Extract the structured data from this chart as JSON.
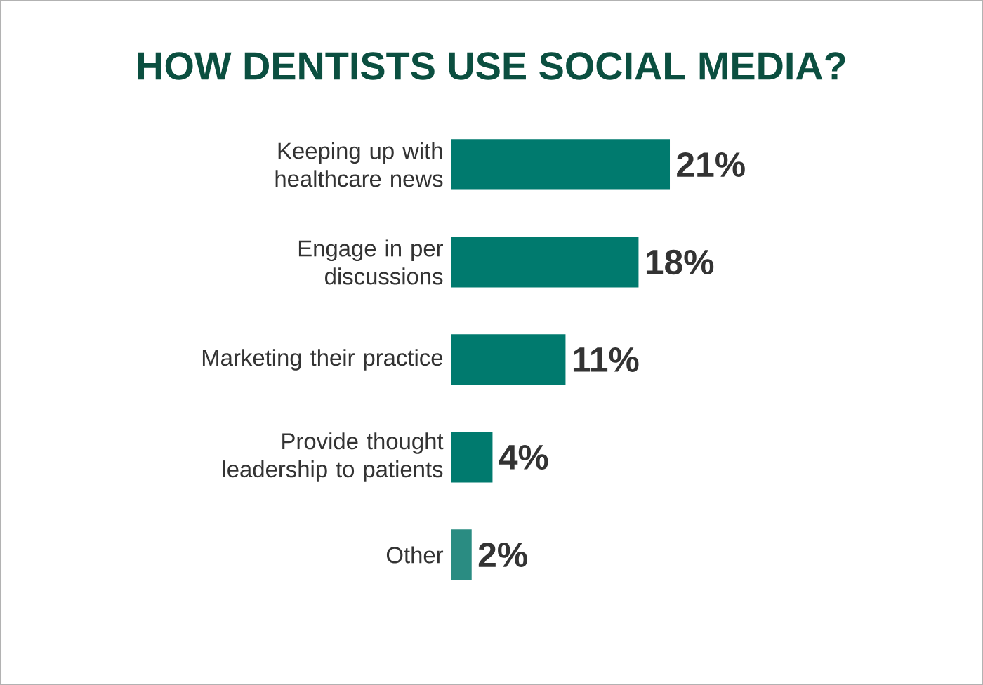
{
  "chart_data": {
    "type": "bar",
    "orientation": "horizontal",
    "title": "HOW DENTISTS USE SOCIAL MEDIA?",
    "categories": [
      "Keeping up with healthcare news",
      "Engage in per discussions",
      "Marketing their practice",
      "Provide thought leadership to patients",
      "Other"
    ],
    "values": [
      21,
      18,
      11,
      4,
      2
    ],
    "colors": [
      "#007a6e",
      "#007a6e",
      "#007a6e",
      "#007a6e",
      "#2a8c82"
    ],
    "value_labels": [
      "21%",
      "18%",
      "11%",
      "4%",
      "2%"
    ]
  }
}
